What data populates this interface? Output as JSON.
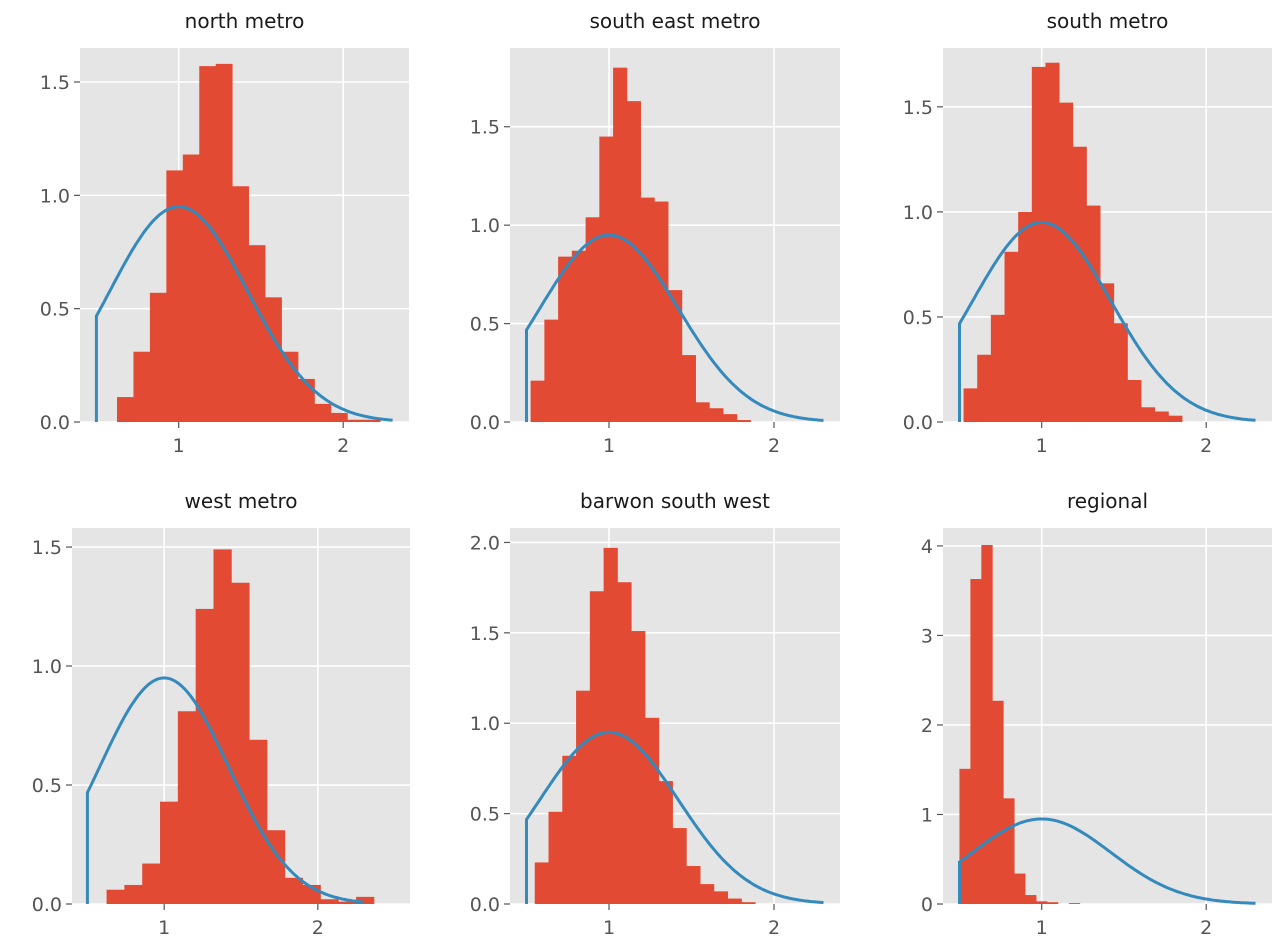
{
  "colors": {
    "panel_bg": "#e5e5e5",
    "bar": "#e24a33",
    "curve": "#348abd",
    "grid": "#ffffff",
    "tick_text": "#555555",
    "title_text": "#1a1a1a"
  },
  "chart_data": [
    {
      "type": "bar",
      "title": "north metro",
      "xlim": [
        0.4,
        2.4
      ],
      "ylim": [
        0,
        1.65
      ],
      "xticks": [
        1,
        2
      ],
      "yticks": [
        0.0,
        0.5,
        1.0,
        1.5
      ],
      "x_tick_labels": [
        "1",
        "2"
      ],
      "y_tick_labels": [
        "0.0",
        "0.5",
        "1.0",
        "1.5"
      ],
      "bins": {
        "start": 0.625,
        "width": 0.1,
        "values": [
          0.11,
          0.31,
          0.57,
          1.11,
          1.18,
          1.57,
          1.58,
          1.04,
          0.78,
          0.55,
          0.31,
          0.19,
          0.08,
          0.04,
          0.01,
          0.01
        ]
      }
    },
    {
      "type": "bar",
      "title": "south east metro",
      "xlim": [
        0.4,
        2.4
      ],
      "ylim": [
        0,
        1.9
      ],
      "xticks": [
        1,
        2
      ],
      "yticks": [
        0.0,
        0.5,
        1.0,
        1.5
      ],
      "x_tick_labels": [
        "1",
        "2"
      ],
      "y_tick_labels": [
        "0.0",
        "0.5",
        "1.0",
        "1.5"
      ],
      "bins": {
        "start": 0.525,
        "width": 0.0833,
        "values": [
          0.21,
          0.52,
          0.84,
          0.87,
          1.04,
          1.45,
          1.8,
          1.63,
          1.14,
          1.12,
          0.67,
          0.34,
          0.1,
          0.07,
          0.04,
          0.01
        ]
      }
    },
    {
      "type": "bar",
      "title": "south metro",
      "xlim": [
        0.4,
        2.4
      ],
      "ylim": [
        0,
        1.78
      ],
      "xticks": [
        1,
        2
      ],
      "yticks": [
        0.0,
        0.5,
        1.0,
        1.5
      ],
      "x_tick_labels": [
        "1",
        "2"
      ],
      "y_tick_labels": [
        "0.0",
        "0.5",
        "1.0",
        "1.5"
      ],
      "bins": {
        "start": 0.525,
        "width": 0.083,
        "values": [
          0.16,
          0.32,
          0.51,
          0.81,
          1.0,
          1.69,
          1.71,
          1.52,
          1.31,
          1.03,
          0.66,
          0.47,
          0.2,
          0.07,
          0.05,
          0.03
        ]
      }
    },
    {
      "type": "bar",
      "title": "west metro",
      "xlim": [
        0.4,
        2.6
      ],
      "ylim": [
        0,
        1.58
      ],
      "xticks": [
        1,
        2
      ],
      "yticks": [
        0.0,
        0.5,
        1.0,
        1.5
      ],
      "x_tick_labels": [
        "1",
        "2"
      ],
      "y_tick_labels": [
        "0.0",
        "0.5",
        "1.0",
        "1.5"
      ],
      "bins": {
        "start": 0.625,
        "width": 0.116,
        "values": [
          0.06,
          0.08,
          0.17,
          0.43,
          0.81,
          1.24,
          1.49,
          1.35,
          0.69,
          0.31,
          0.11,
          0.08,
          0.02,
          0.01,
          0.03
        ]
      }
    },
    {
      "type": "bar",
      "title": "barwon south west",
      "xlim": [
        0.4,
        2.4
      ],
      "ylim": [
        0,
        2.08
      ],
      "xticks": [
        1,
        2
      ],
      "yticks": [
        0.0,
        0.5,
        1.0,
        1.5,
        2.0
      ],
      "x_tick_labels": [
        "1",
        "2"
      ],
      "y_tick_labels": [
        "0.0",
        "0.5",
        "1.0",
        "1.5",
        "2.0"
      ],
      "bins": {
        "start": 0.55,
        "width": 0.0835,
        "values": [
          0.23,
          0.51,
          0.82,
          1.18,
          1.73,
          1.97,
          1.78,
          1.51,
          1.03,
          0.68,
          0.42,
          0.21,
          0.11,
          0.07,
          0.03,
          0.01
        ]
      }
    },
    {
      "type": "bar",
      "title": "regional",
      "xlim": [
        0.4,
        2.4
      ],
      "ylim": [
        0,
        4.2
      ],
      "xticks": [
        1,
        2
      ],
      "yticks": [
        0,
        1,
        2,
        3,
        4
      ],
      "x_tick_labels": [
        "1",
        "2"
      ],
      "y_tick_labels": [
        "0",
        "1",
        "2",
        "3",
        "4"
      ],
      "bins": {
        "start": 0.5,
        "width": 0.0665,
        "values": [
          1.51,
          3.63,
          4.01,
          2.27,
          1.18,
          0.34,
          0.1,
          0.03,
          0.02,
          0.0,
          0.01
        ]
      }
    }
  ],
  "curve": {
    "x_min": 0.5,
    "x_max": 2.3,
    "mean": 1.0,
    "sd": 0.42,
    "peak": 0.95
  }
}
